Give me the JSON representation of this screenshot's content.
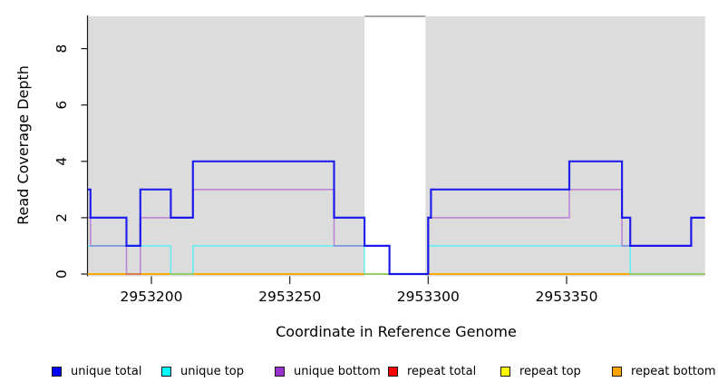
{
  "chart_data": {
    "type": "line",
    "subtype": "step-coverage",
    "title": "",
    "xlabel": "Coordinate in Reference Genome",
    "ylabel": "Read Coverage Depth",
    "x_tick_values": [
      2953200,
      2953250,
      2953300,
      2953350
    ],
    "x_tick_labels": [
      "2953200",
      "2953250",
      "2953300",
      "2953350"
    ],
    "y_tick_values": [
      0,
      2,
      4,
      6,
      8
    ],
    "y_tick_labels": [
      "0",
      "2",
      "4",
      "6",
      "8"
    ],
    "xlim": [
      2953177,
      2953400
    ],
    "ylim": [
      0,
      9.15
    ],
    "grid": false,
    "legend_position": "bottom",
    "background_color": "#FFFFFF",
    "shaded_region_color": "#DCDCDC",
    "shaded_regions": [
      [
        2953177,
        2953277
      ],
      [
        2953299,
        2953400
      ]
    ],
    "uncovered_gap": [
      2953277,
      2953299
    ],
    "gap_border_color": "#8C8C8C",
    "series": [
      {
        "name": "unique total",
        "color": "#0000EE",
        "steps": [
          [
            2953177,
            3
          ],
          [
            2953178,
            2
          ],
          [
            2953191,
            1
          ],
          [
            2953196,
            3
          ],
          [
            2953207,
            2
          ],
          [
            2953215,
            4
          ],
          [
            2953266,
            2
          ],
          [
            2953277,
            1
          ],
          [
            2953286,
            0
          ],
          [
            2953300,
            2
          ],
          [
            2953301,
            3
          ],
          [
            2953351,
            4
          ],
          [
            2953370,
            2
          ],
          [
            2953373,
            1
          ],
          [
            2953395,
            2
          ],
          [
            2953400,
            2
          ]
        ]
      },
      {
        "name": "unique top",
        "color": "#00FFFF",
        "steps": [
          [
            2953177,
            1
          ],
          [
            2953207,
            0
          ],
          [
            2953215,
            1
          ],
          [
            2953277,
            0
          ],
          [
            2953300,
            1
          ],
          [
            2953373,
            0
          ],
          [
            2953400,
            0
          ]
        ]
      },
      {
        "name": "unique bottom",
        "color": "#9932CC",
        "steps": [
          [
            2953177,
            2
          ],
          [
            2953178,
            1
          ],
          [
            2953191,
            0
          ],
          [
            2953196,
            2
          ],
          [
            2953215,
            3
          ],
          [
            2953266,
            1
          ],
          [
            2953286,
            0
          ],
          [
            2953300,
            2
          ],
          [
            2953351,
            3
          ],
          [
            2953370,
            1
          ],
          [
            2953395,
            2
          ],
          [
            2953400,
            2
          ]
        ]
      },
      {
        "name": "repeat total",
        "color": "#FF0000",
        "steps": [
          [
            2953177,
            0
          ],
          [
            2953400,
            0
          ]
        ]
      },
      {
        "name": "repeat top",
        "color": "#FFFF00",
        "steps": [
          [
            2953177,
            0
          ],
          [
            2953400,
            0
          ]
        ]
      },
      {
        "name": "repeat bottom",
        "color": "#FFA500",
        "steps": [
          [
            2953177,
            0
          ],
          [
            2953400,
            0
          ]
        ]
      }
    ]
  },
  "legend": {
    "items": [
      {
        "label": "unique total",
        "color": "#0000FF"
      },
      {
        "label": "unique top",
        "color": "#00FFFF"
      },
      {
        "label": "unique bottom",
        "color": "#9932CC"
      },
      {
        "label": "repeat total",
        "color": "#FF0000"
      },
      {
        "label": "repeat top",
        "color": "#FFFF00"
      },
      {
        "label": "repeat bottom",
        "color": "#FFA500"
      }
    ]
  }
}
